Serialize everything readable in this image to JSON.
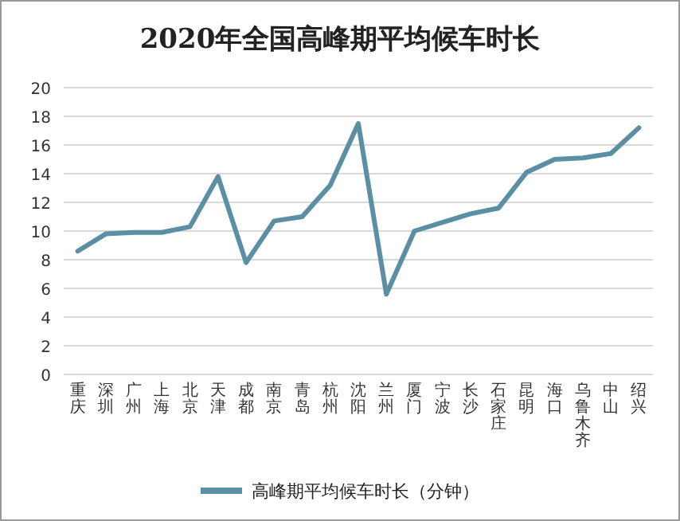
{
  "chart_data": {
    "type": "line",
    "title": "2020年全国高峰期平均候车时长",
    "categories": [
      "重庆",
      "深圳",
      "广州",
      "上海",
      "北京",
      "天津",
      "成都",
      "南京",
      "青岛",
      "杭州",
      "沈阳",
      "兰州",
      "厦门",
      "宁波",
      "长沙",
      "石家庄",
      "昆明",
      "海口",
      "乌鲁木齐",
      "中山",
      "绍兴"
    ],
    "series": [
      {
        "name": "高峰期平均候车时长（分钟）",
        "color": "#5b8fa3",
        "values": [
          8.6,
          9.8,
          9.9,
          9.9,
          10.3,
          13.8,
          7.8,
          10.7,
          11.0,
          13.2,
          17.5,
          5.6,
          10.0,
          10.6,
          11.2,
          11.6,
          14.1,
          15.0,
          15.1,
          15.4,
          17.2
        ]
      }
    ],
    "ylim": [
      0,
      20
    ],
    "yticks": [
      0,
      2,
      4,
      6,
      8,
      10,
      12,
      14,
      16,
      18,
      20
    ],
    "grid": "y",
    "legend": "bottom",
    "marker": "none",
    "line_style": "solid"
  }
}
